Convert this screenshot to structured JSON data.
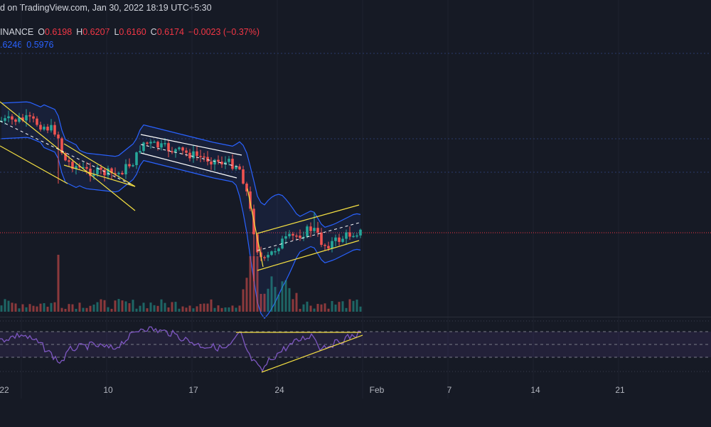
{
  "header": {
    "published": "d on TradingView.com, Jan 30, 2022 18:19 UTC+5:30",
    "symbol_tail": "INANCE",
    "o_label": "O",
    "o_value": "0.6198",
    "h_label": "H",
    "h_value": "0.6207",
    "l_label": "L",
    "l_value": "0.6160",
    "c_label": "C",
    "c_value": "0.6174",
    "change": "−0.0023 (−0.37%)",
    "bb_upper": ".6246",
    "bb_lower": "0.5976"
  },
  "colors": {
    "background": "#161a25",
    "up": "#26a69a",
    "down": "#ef5350",
    "bollinger": "#2962ff",
    "trendline": "#f5e042",
    "channel_white": "#ffffff",
    "rsi": "#7e57c2",
    "rsi_band": "#7e57c2",
    "axis_text": "#b2b5be",
    "price_line": "#f23645"
  },
  "chart_data": [
    {
      "type": "candlestick",
      "title": "",
      "x_axis": {
        "tick_labels": [
          "22",
          "10",
          "17",
          "24",
          "Feb",
          "7",
          "14",
          "21"
        ]
      },
      "bollinger_bands": true,
      "volume": true,
      "note_on_values": "price levels estimated from shape; no price axis visible",
      "ohlc_estimated": [
        [
          0.762,
          0.765,
          0.755,
          0.76
        ],
        [
          0.76,
          0.768,
          0.75,
          0.752
        ],
        [
          0.752,
          0.76,
          0.74,
          0.745
        ],
        [
          0.745,
          0.75,
          0.73,
          0.735
        ],
        [
          0.735,
          0.74,
          0.7,
          0.705
        ],
        [
          0.705,
          0.715,
          0.695,
          0.71
        ],
        [
          0.71,
          0.712,
          0.69,
          0.695
        ],
        [
          0.695,
          0.705,
          0.69,
          0.7
        ],
        [
          0.7,
          0.74,
          0.698,
          0.735
        ],
        [
          0.735,
          0.745,
          0.72,
          0.725
        ],
        [
          0.725,
          0.728,
          0.705,
          0.71
        ],
        [
          0.71,
          0.715,
          0.7,
          0.712
        ],
        [
          0.712,
          0.718,
          0.68,
          0.69
        ],
        [
          0.69,
          0.692,
          0.585,
          0.6
        ],
        [
          0.6,
          0.62,
          0.588,
          0.612
        ],
        [
          0.612,
          0.626,
          0.598,
          0.608
        ],
        [
          0.608,
          0.63,
          0.6,
          0.625
        ],
        [
          0.625,
          0.628,
          0.6,
          0.605
        ],
        [
          0.605,
          0.618,
          0.6,
          0.615
        ],
        [
          0.615,
          0.62,
          0.605,
          0.617
        ]
      ]
    },
    {
      "type": "line",
      "title": "",
      "series": [
        {
          "name": "",
          "values": [
            52,
            44,
            38,
            30,
            26,
            32,
            40,
            48,
            54,
            50,
            46,
            49,
            50,
            47,
            44,
            18,
            26,
            34,
            42,
            40,
            46,
            50,
            53,
            57
          ]
        }
      ],
      "ylim": [
        0,
        100
      ],
      "bands": [
        30,
        50,
        70
      ]
    }
  ]
}
